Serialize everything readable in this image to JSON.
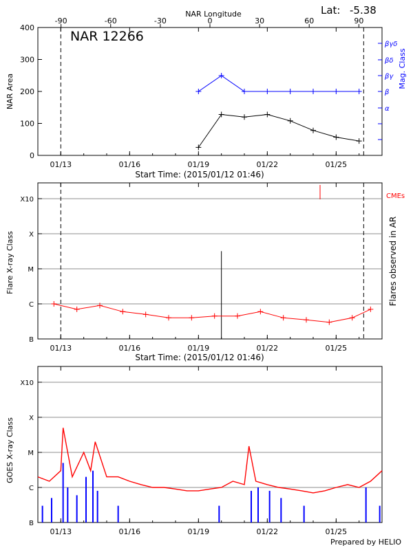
{
  "header": {
    "lat_label": "Lat:",
    "lat_value": "-5.38",
    "region_title": "NAR 12266",
    "footer": "Prepared by HELIO"
  },
  "colors": {
    "axis": "#000000",
    "grid": "#8c8c8c",
    "flare": "#ff0000",
    "mag": "#0000ff",
    "area": "#000000"
  },
  "chart_data": [
    {
      "type": "line",
      "name": "area-mag-panel",
      "xlabel_top": "NAR Longitude",
      "top_ticks": [
        "-90",
        "-60",
        "-30",
        "0",
        "30",
        "60",
        "90"
      ],
      "top_tick_values": [
        -90,
        -60,
        -30,
        0,
        30,
        60,
        90
      ],
      "xlabel": "Start Time: (2015/01/12 01:46)",
      "x_tick_labels": [
        "01/13",
        "01/16",
        "01/19",
        "01/22",
        "01/25"
      ],
      "x_tick_values": [
        1,
        4,
        7,
        10,
        13
      ],
      "xlim": [
        0,
        15
      ],
      "ylabel": "NAR Area",
      "ylim": [
        0,
        400
      ],
      "y_ticks": [
        0,
        100,
        200,
        300,
        400
      ],
      "ylabel_right": "Mag. Class",
      "right_ticks": [
        "α",
        "β",
        "βγ",
        "βδ",
        "βγδ"
      ],
      "dashed_lines_x": [
        1.0,
        14.2
      ],
      "series": [
        {
          "name": "area",
          "x": [
            7,
            8,
            9,
            10,
            11,
            12,
            13,
            14
          ],
          "y": [
            25,
            128,
            120,
            128,
            108,
            78,
            57,
            45
          ]
        },
        {
          "name": "mag",
          "x": [
            7,
            8,
            9,
            10,
            11,
            12,
            13,
            14
          ],
          "class": [
            "β",
            "βγ",
            "β",
            "β",
            "β",
            "β",
            "β",
            "β"
          ]
        }
      ]
    },
    {
      "type": "line",
      "name": "flare-panel",
      "xlabel": "Start Time: (2015/01/12 01:46)",
      "x_tick_labels": [
        "01/13",
        "01/16",
        "01/19",
        "01/22",
        "01/25"
      ],
      "x_tick_values": [
        1,
        4,
        7,
        10,
        13
      ],
      "xlim": [
        0,
        15
      ],
      "ylabel": "Flare X-ray Class",
      "y_tick_labels": [
        "B",
        "C",
        "M",
        "X",
        "X10"
      ],
      "ylabel_right": "Flares observed in AR",
      "cme_label": "CMEs",
      "cme_x": [
        12.3
      ],
      "dashed_lines_x": [
        1.0,
        14.2
      ],
      "flare_x": [
        8.0
      ],
      "flare_peak_class": "C9",
      "series": [
        {
          "name": "background",
          "x": [
            0.7,
            1.7,
            2.7,
            3.7,
            4.7,
            5.7,
            6.7,
            7.7,
            8.7,
            9.7,
            10.7,
            11.7,
            12.7,
            13.7,
            14.5
          ],
          "y_class": [
            "C1.0",
            "C0.7",
            "C0.9",
            "C0.6",
            "C0.5",
            "C0.4",
            "C0.4",
            "C0.45",
            "C0.45",
            "C0.6",
            "C0.4",
            "C0.35",
            "C0.3",
            "C0.4",
            "C0.7"
          ]
        }
      ]
    },
    {
      "type": "line",
      "name": "goes-panel",
      "xlabel": "",
      "x_tick_labels": [
        "01/13",
        "01/16",
        "01/19",
        "01/22",
        "01/25"
      ],
      "x_tick_values": [
        1,
        4,
        7,
        10,
        13
      ],
      "xlim": [
        0,
        15
      ],
      "ylabel": "GOES X-ray Class",
      "y_tick_labels": [
        "B",
        "C",
        "M",
        "X",
        "X10"
      ],
      "series": [
        {
          "name": "GOES 1-8 Å",
          "x": [
            0.0,
            0.5,
            1.0,
            1.1,
            1.5,
            2.0,
            2.3,
            2.5,
            3.0,
            3.5,
            4.0,
            4.5,
            5.0,
            5.5,
            6.0,
            6.5,
            7.0,
            7.5,
            8.0,
            8.5,
            9.0,
            9.2,
            9.5,
            10.0,
            10.5,
            11.0,
            11.5,
            12.0,
            12.5,
            13.0,
            13.5,
            14.0,
            14.5,
            15.0
          ],
          "y_class": [
            "C2",
            "C1.5",
            "C3",
            "M5",
            "C2",
            "M1",
            "C3",
            "M2",
            "C2",
            "C2",
            "C1.5",
            "C1.2",
            "C1.0",
            "C1.0",
            "C0.9",
            "C0.8",
            "C0.8",
            "C0.9",
            "C1.0",
            "C1.5",
            "C1.2",
            "M1.5",
            "C1.5",
            "C1.2",
            "C1.0",
            "C0.9",
            "C0.8",
            "C0.7",
            "C0.8",
            "C1.0",
            "C1.2",
            "C1.0",
            "C1.5",
            "C3"
          ]
        },
        {
          "name": "GOES 0.5-4 Å",
          "x": [
            0.2,
            0.6,
            1.1,
            1.3,
            1.7,
            2.1,
            2.4,
            2.6,
            3.5,
            7.9,
            9.3,
            9.6,
            10.1,
            10.6,
            11.6,
            14.3,
            14.9
          ],
          "y_class": [
            "B3",
            "B5",
            "C5",
            "C1",
            "B6",
            "C2",
            "C3",
            "B8",
            "B3",
            "B3",
            "B8",
            "C1",
            "B8",
            "B5",
            "B3",
            "C1",
            "B3"
          ]
        }
      ]
    }
  ]
}
